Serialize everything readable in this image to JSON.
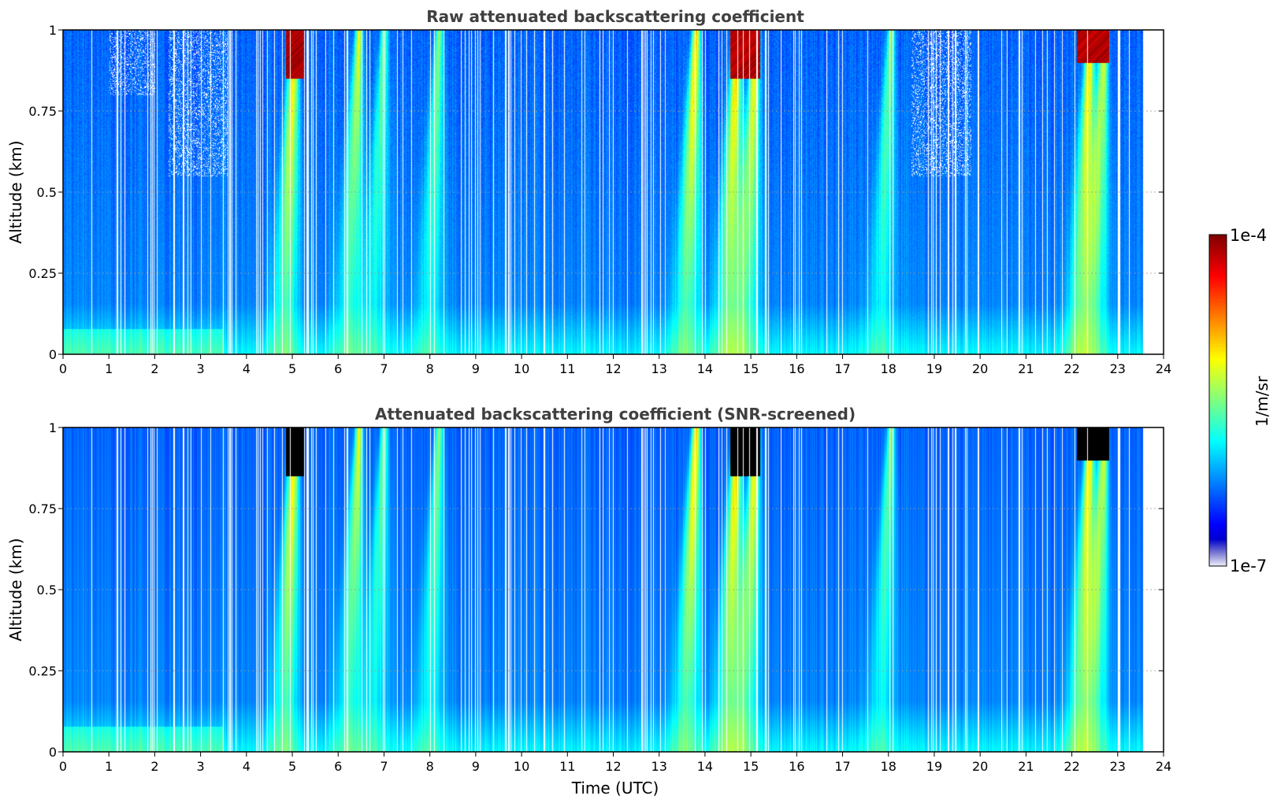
{
  "chart_data": [
    {
      "type": "heatmap",
      "title": "Raw attenuated backscattering coefficient",
      "xlabel": "",
      "ylabel": "Altitude (km)",
      "xlim": [
        0,
        24
      ],
      "ylim": [
        0,
        1
      ],
      "xticks": [
        "0",
        "1",
        "2",
        "3",
        "4",
        "5",
        "6",
        "7",
        "8",
        "9",
        "10",
        "11",
        "12",
        "13",
        "14",
        "15",
        "16",
        "17",
        "18",
        "19",
        "20",
        "21",
        "22",
        "23",
        "24"
      ],
      "yticks": [
        "0",
        "0.25",
        "0.5",
        "0.75",
        "1"
      ],
      "ytick_values": [
        0,
        0.25,
        0.5,
        0.75,
        1
      ],
      "grid": true,
      "data_end_hour": 23.55,
      "screened": false
    },
    {
      "type": "heatmap",
      "title": "Attenuated backscattering coefficient (SNR-screened)",
      "xlabel": "Time (UTC)",
      "ylabel": "Altitude (km)",
      "xlim": [
        0,
        24
      ],
      "ylim": [
        0,
        1
      ],
      "xticks": [
        "0",
        "1",
        "2",
        "3",
        "4",
        "5",
        "6",
        "7",
        "8",
        "9",
        "10",
        "11",
        "12",
        "13",
        "14",
        "15",
        "16",
        "17",
        "18",
        "19",
        "20",
        "21",
        "22",
        "23",
        "24"
      ],
      "yticks": [
        "0",
        "0.25",
        "0.5",
        "0.75",
        "1"
      ],
      "ytick_values": [
        0,
        0.25,
        0.5,
        0.75,
        1
      ],
      "grid": true,
      "data_end_hour": 23.55,
      "screened": true
    }
  ],
  "colorbar": {
    "label": "1/m/sr",
    "max_label": "1e-4",
    "min_label": "1e-7",
    "scale": "log",
    "colormap": "jet"
  }
}
